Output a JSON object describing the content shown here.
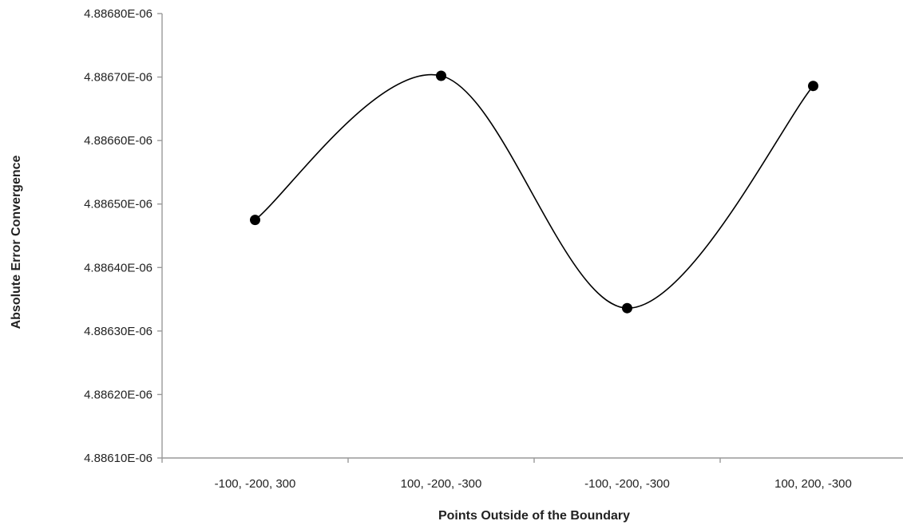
{
  "chart_data": {
    "type": "line",
    "smooth": true,
    "title": "",
    "xlabel": "Points Outside of the Boundary",
    "ylabel": "Absolute Error Convergence",
    "categories": [
      "-100, -200, 300",
      "100, -200, -300",
      "-100, -200, -300",
      "100, 200, -300"
    ],
    "yticks": [
      4.8861e-06,
      4.8862e-06,
      4.8863e-06,
      4.8864e-06,
      4.8865e-06,
      4.8866e-06,
      4.8867e-06,
      4.8868e-06
    ],
    "ytick_labels": [
      "4.88610E-06",
      "4.88620E-06",
      "4.88630E-06",
      "4.88640E-06",
      "4.88650E-06",
      "4.88660E-06",
      "4.88670E-06",
      "4.88680E-06"
    ],
    "ylim": [
      4.8861e-06,
      4.8868e-06
    ],
    "series": [
      {
        "values": [
          4.886475e-06,
          4.886702e-06,
          4.886336e-06,
          4.886686e-06
        ],
        "color": "#000000",
        "marker": "circle"
      }
    ],
    "grid": false,
    "legend": "none"
  }
}
